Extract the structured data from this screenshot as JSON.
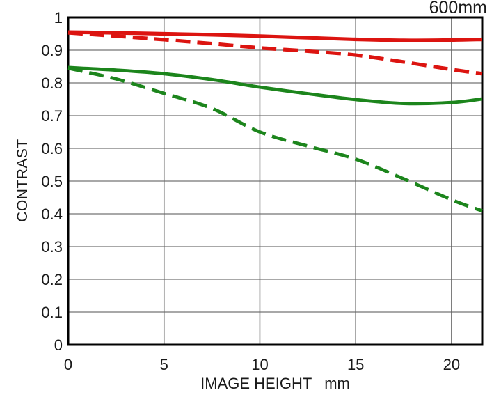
{
  "title": "600mm",
  "chart_data": {
    "type": "line",
    "title": "600mm",
    "xlabel": "IMAGE HEIGHT   mm",
    "ylabel": "CONTRAST",
    "xlim": [
      0,
      21.6
    ],
    "ylim": [
      0,
      1
    ],
    "grid": true,
    "legend": "none",
    "x_ticks": [
      0,
      5,
      10,
      15,
      20
    ],
    "x_tick_labels": [
      "0",
      "5",
      "10",
      "15",
      "20"
    ],
    "y_ticks": [
      0,
      0.1,
      0.2,
      0.3,
      0.4,
      0.5,
      0.6,
      0.7,
      0.8,
      0.9,
      1
    ],
    "y_tick_labels": [
      "0",
      "0.1",
      "0.2",
      "0.3",
      "0.4",
      "0.5",
      "0.6",
      "0.7",
      "0.8",
      "0.9",
      "1"
    ],
    "x": [
      0,
      2.5,
      5,
      7.5,
      10,
      12.5,
      15,
      17.5,
      20,
      21.6
    ],
    "series": [
      {
        "name": "red-solid",
        "color": "#dc1410",
        "dash": "solid",
        "width": 5.2,
        "values": [
          0.955,
          0.953,
          0.95,
          0.947,
          0.943,
          0.938,
          0.933,
          0.93,
          0.931,
          0.933
        ]
      },
      {
        "name": "red-dashed",
        "color": "#dc1410",
        "dash": "dashed",
        "width": 5.2,
        "values": [
          0.953,
          0.943,
          0.932,
          0.92,
          0.907,
          0.897,
          0.885,
          0.864,
          0.841,
          0.828
        ]
      },
      {
        "name": "green-solid",
        "color": "#1c851c",
        "dash": "solid",
        "width": 4.8,
        "values": [
          0.847,
          0.839,
          0.828,
          0.81,
          0.787,
          0.767,
          0.749,
          0.737,
          0.74,
          0.751
        ]
      },
      {
        "name": "green-dashed",
        "color": "#1c851c",
        "dash": "dashed",
        "width": 4.8,
        "values": [
          0.845,
          0.812,
          0.768,
          0.722,
          0.65,
          0.607,
          0.567,
          0.507,
          0.443,
          0.409
        ]
      }
    ]
  },
  "colors": {
    "red_line": "#dc1410",
    "green_line": "#1c851c",
    "h_gridline": "#8c8c8c",
    "v_gridline": "#636363",
    "border": "#000000",
    "text": "#1a1a1a",
    "background": "#ffffff"
  }
}
